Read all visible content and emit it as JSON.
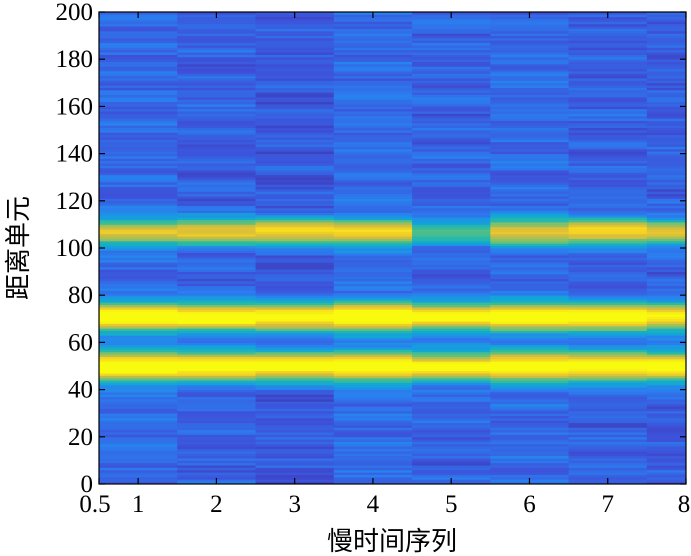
{
  "chart_data": {
    "type": "heatmap",
    "xlabel": "慢时间序列",
    "ylabel": "距离单元",
    "xlim": [
      0.5,
      8
    ],
    "ylim": [
      0,
      200
    ],
    "x_ticks": [
      "0.5",
      "1",
      "2",
      "3",
      "4",
      "5",
      "6",
      "7",
      "8"
    ],
    "y_ticks": [
      "0",
      "20",
      "40",
      "60",
      "80",
      "100",
      "120",
      "140",
      "160",
      "180",
      "200"
    ],
    "columns": [
      1,
      2,
      3,
      4,
      5,
      6,
      7,
      8
    ],
    "colormap": "parula",
    "colors": [
      "#352a87",
      "#3e4fd8",
      "#2a7ff0",
      "#10a8d6",
      "#2cbba0",
      "#86c266",
      "#d4bb3e",
      "#f5d123",
      "#f9fb0e"
    ],
    "range_bins": 200,
    "bands": [
      {
        "center": 50,
        "width": 4.2,
        "peak": [
          0.95,
          0.93,
          0.9,
          0.92,
          0.82,
          0.9,
          0.9,
          0.93
        ]
      },
      {
        "center": 71,
        "width": 4.0,
        "peak": [
          0.96,
          0.92,
          0.92,
          0.95,
          0.86,
          0.9,
          0.9,
          0.85
        ]
      },
      {
        "center": 107,
        "width": 3.8,
        "peak": [
          0.6,
          0.68,
          0.76,
          0.66,
          0.35,
          0.63,
          0.72,
          0.62
        ]
      }
    ]
  }
}
